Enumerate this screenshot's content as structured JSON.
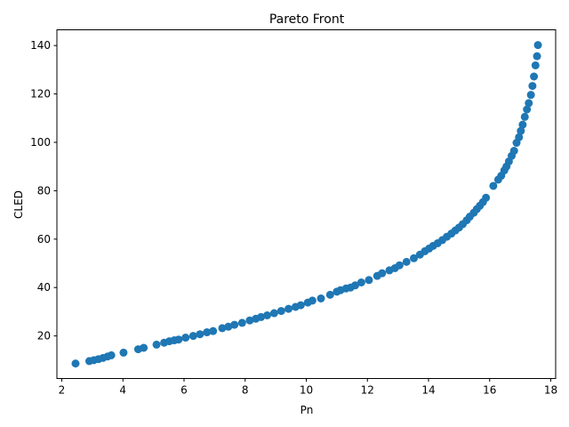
{
  "chart_data": {
    "type": "scatter",
    "title": "Pareto Front",
    "xlabel": "Pn",
    "ylabel": "CLED",
    "xlim": [
      1.84,
      18.16
    ],
    "ylim": [
      2.4,
      146.5
    ],
    "xticks": [
      2,
      4,
      6,
      8,
      10,
      12,
      14,
      16,
      18
    ],
    "yticks": [
      20,
      40,
      60,
      80,
      100,
      120,
      140
    ],
    "grid": false,
    "marker_color": "#1f77b4",
    "points": [
      [
        2.45,
        8.6
      ],
      [
        2.9,
        9.6
      ],
      [
        3.05,
        10.0
      ],
      [
        3.2,
        10.4
      ],
      [
        3.35,
        10.9
      ],
      [
        3.5,
        11.5
      ],
      [
        3.62,
        12.0
      ],
      [
        4.02,
        13.1
      ],
      [
        4.5,
        14.5
      ],
      [
        4.68,
        15.1
      ],
      [
        5.1,
        16.4
      ],
      [
        5.35,
        17.2
      ],
      [
        5.52,
        17.8
      ],
      [
        5.68,
        18.2
      ],
      [
        5.82,
        18.5
      ],
      [
        6.05,
        19.3
      ],
      [
        6.3,
        20.0
      ],
      [
        6.52,
        20.7
      ],
      [
        6.75,
        21.5
      ],
      [
        6.95,
        22.0
      ],
      [
        7.25,
        23.2
      ],
      [
        7.45,
        23.8
      ],
      [
        7.65,
        24.6
      ],
      [
        7.9,
        25.4
      ],
      [
        8.15,
        26.4
      ],
      [
        8.35,
        27.1
      ],
      [
        8.52,
        27.8
      ],
      [
        8.72,
        28.5
      ],
      [
        8.95,
        29.4
      ],
      [
        9.18,
        30.3
      ],
      [
        9.42,
        31.2
      ],
      [
        9.65,
        32.0
      ],
      [
        9.82,
        32.7
      ],
      [
        10.05,
        33.8
      ],
      [
        10.2,
        34.6
      ],
      [
        10.48,
        35.5
      ],
      [
        10.78,
        37.0
      ],
      [
        11.0,
        38.3
      ],
      [
        11.12,
        38.9
      ],
      [
        11.3,
        39.6
      ],
      [
        11.45,
        40.0
      ],
      [
        11.6,
        40.9
      ],
      [
        11.8,
        42.1
      ],
      [
        12.05,
        43.1
      ],
      [
        12.32,
        44.8
      ],
      [
        12.48,
        45.9
      ],
      [
        12.72,
        47.1
      ],
      [
        12.9,
        48.0
      ],
      [
        13.05,
        49.2
      ],
      [
        13.28,
        50.6
      ],
      [
        13.52,
        52.1
      ],
      [
        13.72,
        53.6
      ],
      [
        13.88,
        55.0
      ],
      [
        14.02,
        56.1
      ],
      [
        14.15,
        57.2
      ],
      [
        14.3,
        58.3
      ],
      [
        14.45,
        59.6
      ],
      [
        14.6,
        61.0
      ],
      [
        14.75,
        62.3
      ],
      [
        14.88,
        63.6
      ],
      [
        15.0,
        64.8
      ],
      [
        15.12,
        66.2
      ],
      [
        15.25,
        67.8
      ],
      [
        15.35,
        69.3
      ],
      [
        15.48,
        70.9
      ],
      [
        15.58,
        72.4
      ],
      [
        15.68,
        73.8
      ],
      [
        15.78,
        75.3
      ],
      [
        15.88,
        77.1
      ],
      [
        16.12,
        82.0
      ],
      [
        16.28,
        84.6
      ],
      [
        16.38,
        86.2
      ],
      [
        16.48,
        88.4
      ],
      [
        16.55,
        90.0
      ],
      [
        16.63,
        92.1
      ],
      [
        16.72,
        94.4
      ],
      [
        16.8,
        96.5
      ],
      [
        16.88,
        99.8
      ],
      [
        16.96,
        102.1
      ],
      [
        17.02,
        104.7
      ],
      [
        17.08,
        107.3
      ],
      [
        17.15,
        110.5
      ],
      [
        17.22,
        113.6
      ],
      [
        17.28,
        116.2
      ],
      [
        17.35,
        119.6
      ],
      [
        17.4,
        123.3
      ],
      [
        17.45,
        127.2
      ],
      [
        17.5,
        131.8
      ],
      [
        17.55,
        135.6
      ],
      [
        17.58,
        140.2
      ]
    ]
  }
}
